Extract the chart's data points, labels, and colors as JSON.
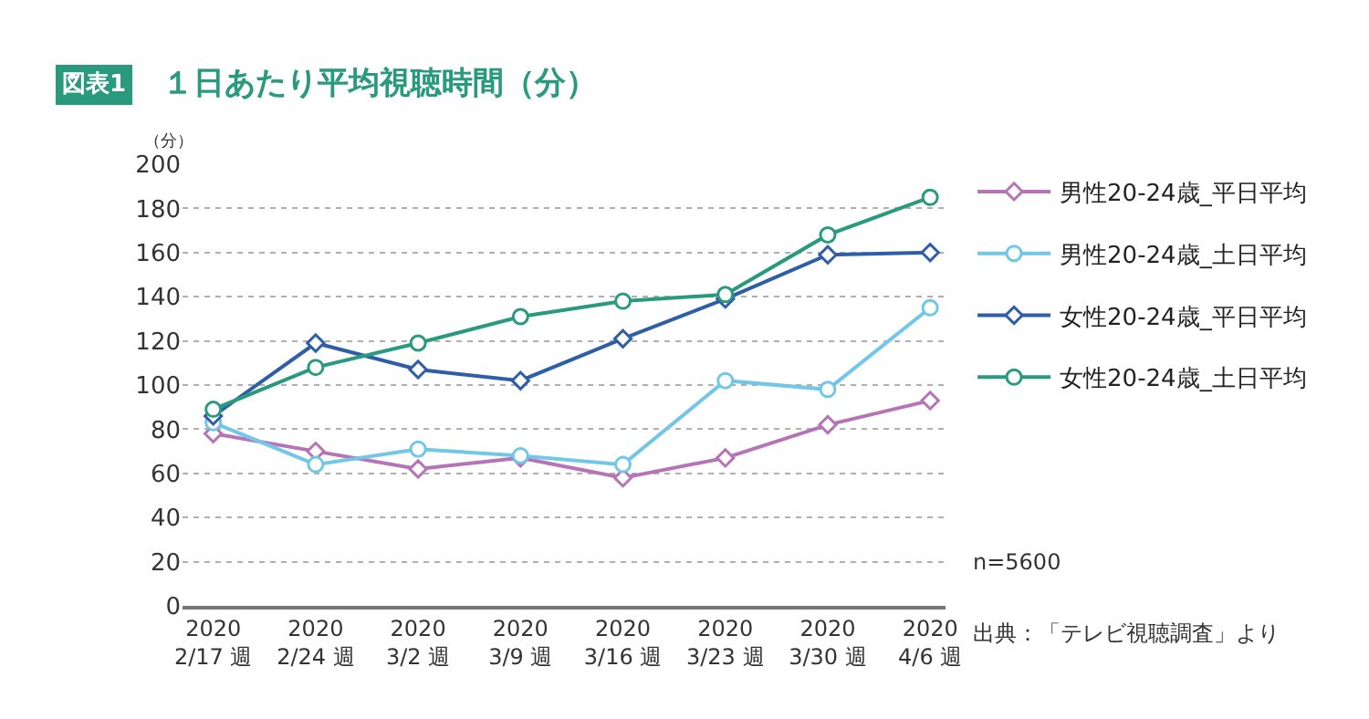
{
  "chart_data": {
    "type": "line",
    "title": "１日あたり平均視聴時間（分）",
    "ylabel": "（分）",
    "categories": [
      "2020\n2/17 週",
      "2020\n2/24 週",
      "2020\n3/2 週",
      "2020\n3/9 週",
      "2020\n3/16 週",
      "2020\n3/23 週",
      "2020\n3/30 週",
      "2020\n4/6 週"
    ],
    "series": [
      {
        "name": "男性20-24歳_平日平均",
        "color": "#b574b5",
        "marker": "diamond",
        "values": [
          78,
          70,
          62,
          67,
          58,
          67,
          82,
          93
        ]
      },
      {
        "name": "男性20-24歳_土日平均",
        "color": "#72c6e8",
        "marker": "circle",
        "values": [
          83,
          64,
          71,
          68,
          64,
          102,
          98,
          135
        ]
      },
      {
        "name": "女性20-24歳_平日平均",
        "color": "#2f5ea8",
        "marker": "diamond",
        "values": [
          86,
          119,
          107,
          102,
          121,
          139,
          159,
          160
        ]
      },
      {
        "name": "女性20-24歳_土日平均",
        "color": "#2a9a7f",
        "marker": "circle",
        "values": [
          89,
          108,
          119,
          131,
          138,
          141,
          168,
          185
        ]
      }
    ],
    "ylim": [
      0,
      200
    ],
    "yticks": [
      0,
      20,
      40,
      60,
      80,
      100,
      120,
      140,
      160,
      180,
      200
    ],
    "grid": "y",
    "legend": "right",
    "line_style": "solid",
    "annotations": [
      "図表1",
      "n=5600",
      "出典：「テレビ視聴調査」より"
    ]
  }
}
